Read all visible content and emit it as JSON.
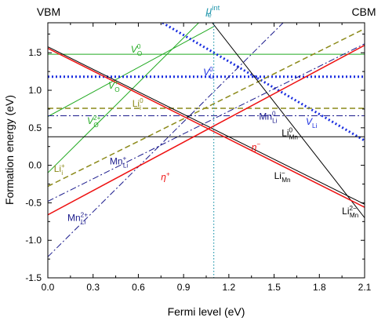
{
  "chart_data": {
    "type": "line",
    "xlabel": "Fermi level (eV)",
    "ylabel": "Formation energy (eV)",
    "xlim": [
      0.0,
      2.1
    ],
    "ylim": [
      -1.5,
      1.9
    ],
    "xticks": [
      "0.0",
      "0.3",
      "0.6",
      "0.9",
      "1.2",
      "1.5",
      "1.8",
      "2.1"
    ],
    "xtick_values": [
      0.0,
      0.3,
      0.6,
      0.9,
      1.2,
      1.5,
      1.8,
      2.1
    ],
    "yticks": [
      "-1.5",
      "-1.0",
      "-0.5",
      "0.0",
      "0.5",
      "1.0",
      "1.5"
    ],
    "ytick_values": [
      -1.5,
      -1.0,
      -0.5,
      0.0,
      0.5,
      1.0,
      1.5
    ],
    "grid": false,
    "legend": "none",
    "corner_labels": {
      "left": "VBM",
      "right": "CBM"
    },
    "vline": {
      "x": 1.1,
      "label_base": "μ",
      "label_sub": "e",
      "label_sup": "int",
      "color": "#2a9bb0"
    },
    "series": [
      {
        "color": "#22aa22",
        "style": "solid",
        "width": 1,
        "x": [
          0.0,
          2.1
        ],
        "y": [
          1.48,
          1.48
        ]
      },
      {
        "color": "#22aa22",
        "style": "solid",
        "width": 1,
        "x": [
          0.0,
          1.1
        ],
        "y": [
          0.65,
          1.85
        ]
      },
      {
        "color": "#22aa22",
        "style": "solid",
        "width": 1,
        "x": [
          0.0,
          1.0
        ],
        "y": [
          -0.1,
          1.9
        ]
      },
      {
        "color": "#1a2ee0",
        "style": "dotted",
        "width": 3,
        "x": [
          0.0,
          2.1
        ],
        "y": [
          1.18,
          1.18
        ]
      },
      {
        "color": "#1a2ee0",
        "style": "dotted",
        "width": 3,
        "x": [
          0.76,
          2.1
        ],
        "y": [
          1.9,
          0.33
        ]
      },
      {
        "color": "#8c8a1a",
        "style": "dashed",
        "width": 1.5,
        "x": [
          0.0,
          2.1
        ],
        "y": [
          0.76,
          0.76
        ]
      },
      {
        "color": "#8c8a1a",
        "style": "dashed",
        "width": 1.5,
        "x": [
          0.0,
          2.1
        ],
        "y": [
          -0.28,
          1.82
        ]
      },
      {
        "color": "#1a1a8c",
        "style": "dashdot",
        "width": 1,
        "x": [
          0.0,
          2.1
        ],
        "y": [
          0.66,
          0.66
        ]
      },
      {
        "color": "#1a1a8c",
        "style": "dashdot",
        "width": 1,
        "x": [
          0.0,
          2.1
        ],
        "y": [
          -0.48,
          1.62
        ]
      },
      {
        "color": "#1a1a8c",
        "style": "dashdot",
        "width": 1,
        "x": [
          0.0,
          1.56
        ],
        "y": [
          -1.22,
          1.9
        ]
      },
      {
        "color": "#000000",
        "style": "solid",
        "width": 1,
        "x": [
          0.0,
          2.1
        ],
        "y": [
          0.38,
          0.38
        ]
      },
      {
        "color": "#000000",
        "style": "solid",
        "width": 1,
        "x": [
          0.0,
          2.1
        ],
        "y": [
          1.58,
          -0.52
        ]
      },
      {
        "color": "#000000",
        "style": "solid",
        "width": 1,
        "x": [
          1.09,
          2.1
        ],
        "y": [
          1.9,
          -0.7
        ]
      },
      {
        "color": "#ee1111",
        "style": "solid",
        "width": 1.5,
        "x": [
          0.0,
          2.1
        ],
        "y": [
          -0.66,
          1.6
        ]
      },
      {
        "color": "#ee1111",
        "style": "solid",
        "width": 1.5,
        "x": [
          0.0,
          2.1
        ],
        "y": [
          1.56,
          -0.56
        ]
      }
    ],
    "annotations": [
      {
        "base": "V",
        "sub": "O",
        "sup": "0",
        "x": 0.55,
        "y": 1.5,
        "color": "#22aa22",
        "italic": true
      },
      {
        "base": "V",
        "sub": "O",
        "sup": "+",
        "x": 0.4,
        "y": 1.02,
        "color": "#22aa22",
        "italic": true
      },
      {
        "base": "V",
        "sub": "O",
        "sup": "2+",
        "x": 0.26,
        "y": 0.55,
        "color": "#22aa22",
        "italic": true
      },
      {
        "base": "V",
        "sub": "Li",
        "sup": "0",
        "x": 1.03,
        "y": 1.2,
        "color": "#1a2ee0",
        "italic": true
      },
      {
        "base": "V",
        "sub": "Li",
        "sup": "",
        "x": 1.71,
        "y": 0.54,
        "color": "#1a2ee0",
        "italic": true
      },
      {
        "base": "Li",
        "sub": "i",
        "sup": "0",
        "x": 0.56,
        "y": 0.78,
        "color": "#8c8a1a",
        "italic": false
      },
      {
        "base": "Li",
        "sub": "i",
        "sup": "+",
        "x": 0.04,
        "y": -0.09,
        "color": "#8c8a1a",
        "italic": false
      },
      {
        "base": "Mn",
        "sub": "Li",
        "sup": "0",
        "x": 1.4,
        "y": 0.61,
        "color": "#1a1a8c",
        "italic": false
      },
      {
        "base": "Mn",
        "sub": "Li",
        "sup": "+",
        "x": 0.41,
        "y": 0.01,
        "color": "#1a1a8c",
        "italic": false
      },
      {
        "base": "Mn",
        "sub": "Li",
        "sup": "2+",
        "x": 0.13,
        "y": -0.74,
        "color": "#1a1a8c",
        "italic": false
      },
      {
        "base": "Li",
        "sub": "Mn",
        "sup": "0",
        "x": 1.55,
        "y": 0.39,
        "color": "#000000",
        "italic": false
      },
      {
        "base": "Li",
        "sub": "Mn",
        "sup": "−",
        "x": 1.5,
        "y": -0.18,
        "color": "#000000",
        "italic": false
      },
      {
        "base": "Li",
        "sub": "Mn",
        "sup": "2−",
        "x": 1.95,
        "y": -0.65,
        "color": "#000000",
        "italic": false
      },
      {
        "base": "η",
        "sub": "",
        "sup": "+",
        "x": 0.75,
        "y": -0.2,
        "color": "#ee1111",
        "italic": true
      },
      {
        "base": "η",
        "sub": "",
        "sup": "−",
        "x": 1.35,
        "y": 0.2,
        "color": "#ee1111",
        "italic": true
      }
    ]
  }
}
